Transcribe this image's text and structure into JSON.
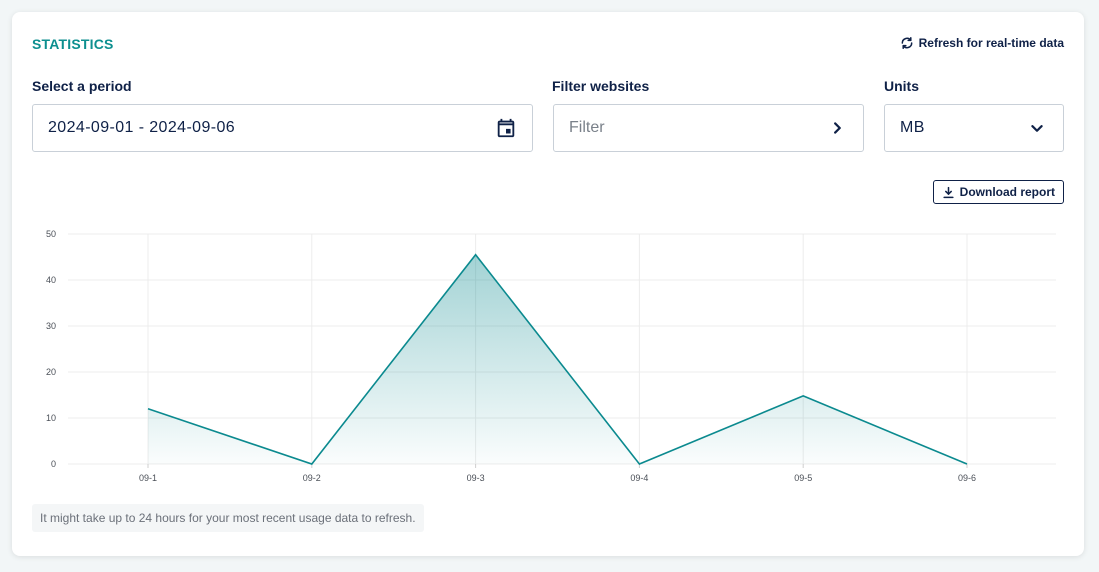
{
  "header": {
    "title": "STATISTICS",
    "refresh_label": "Refresh for real-time data"
  },
  "period": {
    "label": "Select a period",
    "value": "2024-09-01 - 2024-09-06"
  },
  "filter": {
    "label": "Filter websites",
    "placeholder": "Filter"
  },
  "units": {
    "label": "Units",
    "selected": "MB"
  },
  "download_label": "Download report",
  "note": "It might take up to 24 hours for your most recent usage data to refresh.",
  "colors": {
    "accent": "#0d8f8f",
    "line": "#0b8a8f",
    "text": "#0f2147"
  },
  "chart_data": {
    "type": "area",
    "categories": [
      "09-1",
      "09-2",
      "09-3",
      "09-4",
      "09-5",
      "09-6"
    ],
    "values": [
      12,
      0,
      45.5,
      0,
      14.8,
      0
    ],
    "ylim": [
      0,
      50
    ],
    "yticks": [
      0,
      10,
      20,
      30,
      40,
      50
    ],
    "grid": true,
    "title": "",
    "xlabel": "",
    "ylabel": ""
  }
}
